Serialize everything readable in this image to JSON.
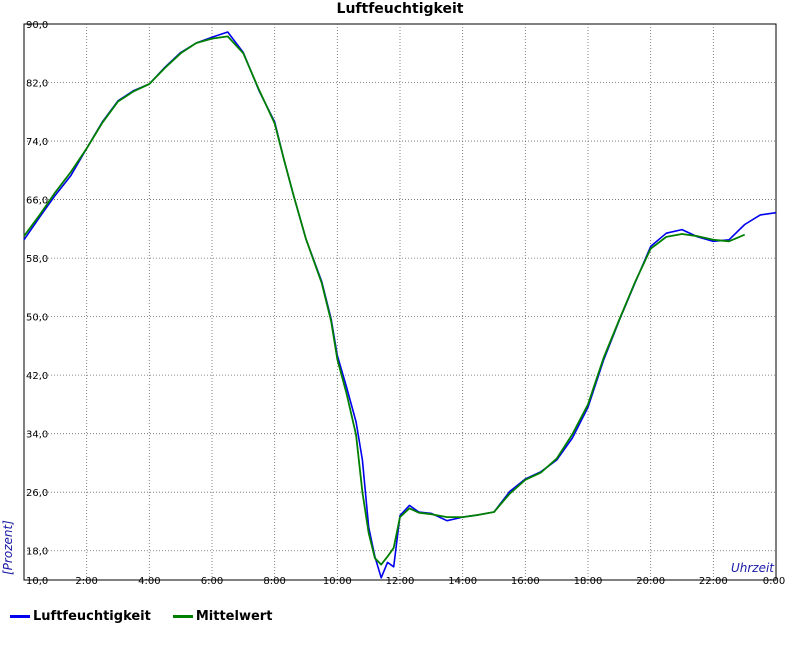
{
  "chart_data": {
    "type": "line",
    "title": "Luftfeuchtigkeit",
    "xlabel": "Uhrzeit",
    "ylabel": "[Prozent]",
    "xlim": [
      0,
      24
    ],
    "ylim": [
      14,
      90
    ],
    "grid": true,
    "legend_position": "bottom-left",
    "x_tick_labels": [
      "0:00",
      "2:00",
      "4:00",
      "6:00",
      "8:00",
      "10:00",
      "12:00",
      "14:00",
      "16:00",
      "18:00",
      "20:00",
      "22:00",
      "0:00"
    ],
    "y_tick_labels": [
      "18,0",
      "26,0",
      "34,0",
      "42,0",
      "50,0",
      "58,0",
      "66,0",
      "74,0",
      "82,0",
      "90,0"
    ],
    "corner_label": "10,0",
    "series": [
      {
        "name": "Luftfeuchtigkeit",
        "color": "#0000ee",
        "x": [
          0.0,
          0.5,
          1.0,
          1.5,
          2.0,
          2.5,
          3.0,
          3.5,
          4.0,
          4.5,
          5.0,
          5.5,
          6.0,
          6.5,
          7.0,
          7.5,
          8.0,
          8.3,
          8.6,
          9.0,
          9.5,
          9.8,
          10.0,
          10.3,
          10.6,
          10.8,
          11.0,
          11.2,
          11.4,
          11.6,
          11.8,
          12.0,
          12.3,
          12.6,
          13.0,
          13.5,
          14.0,
          14.5,
          15.0,
          15.5,
          16.0,
          16.5,
          17.0,
          17.5,
          18.0,
          18.5,
          19.0,
          19.5,
          20.0,
          20.5,
          21.0,
          21.5,
          22.0,
          22.5,
          23.0,
          23.5,
          24.0
        ],
        "y": [
          60.5,
          63.6,
          66.6,
          69.3,
          73.0,
          76.6,
          79.5,
          80.9,
          81.8,
          84.1,
          86.1,
          87.4,
          88.2,
          88.9,
          86.1,
          80.9,
          76.6,
          71.4,
          66.6,
          60.6,
          54.8,
          49.7,
          44.7,
          40.3,
          35.6,
          30.4,
          21.2,
          17.2,
          14.3,
          16.4,
          15.8,
          22.8,
          24.2,
          23.3,
          23.1,
          22.1,
          22.6,
          22.9,
          23.3,
          26.1,
          27.8,
          28.8,
          30.4,
          33.4,
          37.6,
          44.1,
          49.5,
          54.6,
          59.6,
          61.4,
          61.9,
          60.9,
          60.3,
          60.5,
          62.6,
          63.9,
          64.2
        ]
      },
      {
        "name": "Mittelwert",
        "color": "#008000",
        "x": [
          0.0,
          0.5,
          1.0,
          1.5,
          2.0,
          2.5,
          3.0,
          3.5,
          4.0,
          4.5,
          5.0,
          5.5,
          6.0,
          6.5,
          7.0,
          7.5,
          8.0,
          8.3,
          8.6,
          9.0,
          9.5,
          9.8,
          10.0,
          10.3,
          10.6,
          10.8,
          11.0,
          11.2,
          11.4,
          11.6,
          11.8,
          12.0,
          12.3,
          12.6,
          13.0,
          13.5,
          14.0,
          14.5,
          15.0,
          15.5,
          16.0,
          16.5,
          17.0,
          17.5,
          18.0,
          18.5,
          19.0,
          19.5,
          20.0,
          20.5,
          21.0,
          21.5,
          22.0,
          22.5,
          23.0
        ],
        "y": [
          61.0,
          63.9,
          67.0,
          69.8,
          73.0,
          76.5,
          79.4,
          80.8,
          81.8,
          84.0,
          86.0,
          87.4,
          88.0,
          88.3,
          86.0,
          81.0,
          76.4,
          71.4,
          66.6,
          60.6,
          54.6,
          49.4,
          44.2,
          39.4,
          33.8,
          26.0,
          20.4,
          17.0,
          16.1,
          17.2,
          18.4,
          22.6,
          23.8,
          23.2,
          23.0,
          22.6,
          22.6,
          22.9,
          23.3,
          25.8,
          27.7,
          28.7,
          30.6,
          33.9,
          38.0,
          44.4,
          49.6,
          54.7,
          59.3,
          60.9,
          61.3,
          61.0,
          60.5,
          60.3,
          61.2
        ]
      }
    ]
  },
  "legend": {
    "items": [
      "Luftfeuchtigkeit",
      "Mittelwert"
    ]
  }
}
